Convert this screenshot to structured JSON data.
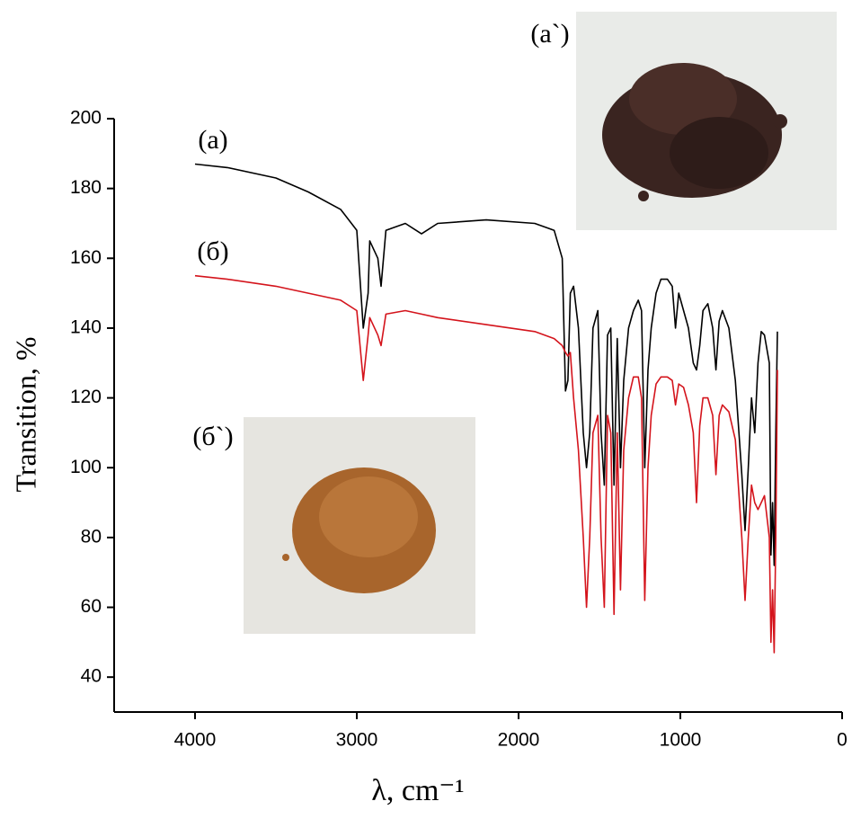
{
  "chart_data": {
    "type": "line",
    "x_label": "λ, cm⁻¹",
    "y_label": "Transition, %",
    "xlim": [
      4500,
      0
    ],
    "xticks": [
      4000,
      3000,
      2000,
      1000,
      0
    ],
    "ylim": [
      30,
      200
    ],
    "yticks": [
      40,
      60,
      80,
      100,
      120,
      140,
      160,
      180,
      200
    ],
    "annotations": [
      "(a)",
      "(б)",
      "(a`)",
      "(б`)"
    ],
    "x": [
      4000,
      3800,
      3500,
      3300,
      3100,
      3000,
      2960,
      2930,
      2920,
      2870,
      2850,
      2820,
      2700,
      2600,
      2500,
      2200,
      1900,
      1780,
      1730,
      1710,
      1695,
      1680,
      1660,
      1630,
      1600,
      1580,
      1560,
      1540,
      1510,
      1490,
      1470,
      1450,
      1430,
      1410,
      1390,
      1370,
      1350,
      1320,
      1290,
      1260,
      1240,
      1220,
      1200,
      1180,
      1150,
      1120,
      1080,
      1050,
      1030,
      1010,
      980,
      950,
      920,
      900,
      880,
      860,
      830,
      800,
      780,
      760,
      740,
      700,
      660,
      620,
      600,
      580,
      560,
      540,
      520,
      500,
      480,
      450,
      440,
      430,
      420,
      410,
      400
    ],
    "series": [
      {
        "color": "#000000",
        "values": [
          187,
          186,
          183,
          179,
          174,
          168,
          140,
          150,
          165,
          160,
          152,
          168,
          170,
          167,
          170,
          171,
          170,
          168,
          160,
          122,
          125,
          150,
          152,
          140,
          110,
          100,
          110,
          140,
          145,
          110,
          95,
          138,
          140,
          95,
          137,
          100,
          125,
          140,
          145,
          148,
          145,
          100,
          128,
          140,
          150,
          154,
          154,
          152,
          140,
          150,
          145,
          140,
          130,
          128,
          135,
          145,
          147,
          140,
          128,
          142,
          145,
          140,
          125,
          98,
          82,
          100,
          120,
          110,
          130,
          139,
          138,
          130,
          75,
          90,
          72,
          110,
          139
        ]
      },
      {
        "color": "#d4141c",
        "values": [
          155,
          154,
          152,
          150,
          148,
          145,
          125,
          138,
          143,
          138,
          135,
          144,
          145,
          144,
          143,
          141,
          139,
          137,
          135,
          133,
          132,
          133,
          120,
          105,
          80,
          60,
          80,
          110,
          115,
          80,
          60,
          115,
          110,
          58,
          110,
          65,
          105,
          120,
          126,
          126,
          120,
          62,
          100,
          115,
          124,
          126,
          126,
          125,
          118,
          124,
          123,
          118,
          110,
          90,
          112,
          120,
          120,
          115,
          98,
          115,
          118,
          116,
          108,
          80,
          62,
          80,
          95,
          90,
          88,
          90,
          92,
          80,
          50,
          65,
          47,
          80,
          128
        ]
      }
    ]
  }
}
